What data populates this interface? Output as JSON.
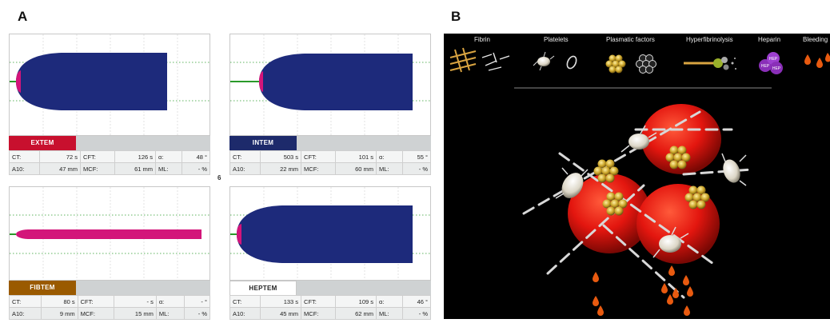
{
  "panel_a": {
    "letter": "A",
    "center_label": "6",
    "tems": [
      {
        "name": "EXTEM",
        "color": "#c8102e",
        "ct": "72 s",
        "cft": "126 s",
        "alpha": "48 °",
        "a10": "47 mm",
        "mcf": "61 mm",
        "ml": "- %"
      },
      {
        "name": "INTEM",
        "color": "#1d2a6b",
        "ct": "503 s",
        "cft": "101 s",
        "alpha": "55 °",
        "a10": "22 mm",
        "mcf": "60 mm",
        "ml": "- %"
      },
      {
        "name": "FIBTEM",
        "color": "#9a5a00",
        "ct": "80 s",
        "cft": "- s",
        "alpha": "- °",
        "a10": "9 mm",
        "mcf": "15 mm",
        "ml": "- %"
      },
      {
        "name": "HEPTEM",
        "color": "#ffffff",
        "ct": "133 s",
        "cft": "109 s",
        "alpha": "46 °",
        "a10": "45 mm",
        "mcf": "62 mm",
        "ml": "- %"
      }
    ],
    "labels": {
      "ct": "CT:",
      "cft": "CFT:",
      "alpha": "α:",
      "a10": "A10:",
      "mcf": "MCF:",
      "ml": "ML:"
    }
  },
  "panel_b": {
    "letter": "B",
    "legend": [
      "Fibrin",
      "Platelets",
      "Plasmatic factors",
      "Hyperfibrinolysis",
      "Heparin",
      "Bleeding"
    ],
    "heparin_badge": "HEP",
    "colors": {
      "background": "#000000",
      "erythrocyte": "#e3160f",
      "factor": "#c9a227",
      "platelet": "#e8e4d8",
      "blood_drop": "#e85a10"
    }
  }
}
